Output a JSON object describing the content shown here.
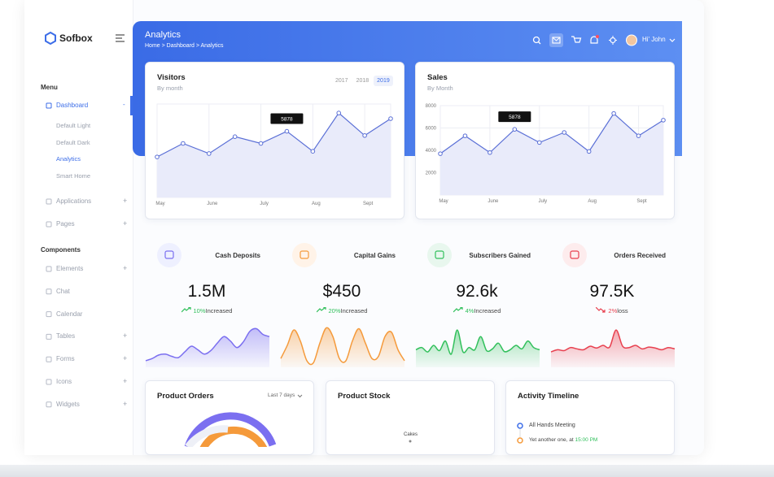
{
  "sidebar": {
    "brand": "Sofbox",
    "menu_title": "Menu",
    "dashboard": {
      "label": "Dashboard",
      "toggle": "-",
      "children": [
        "Default Light",
        "Default Dark",
        "Analytics",
        "Smart Home"
      ]
    },
    "menu_items": [
      {
        "label": "Applications",
        "toggle": "+"
      },
      {
        "label": "Pages",
        "toggle": "+"
      }
    ],
    "components_title": "Components",
    "component_items": [
      {
        "label": "Elements",
        "toggle": "+"
      },
      {
        "label": "Chat"
      },
      {
        "label": "Calendar"
      },
      {
        "label": "Tables",
        "toggle": "+"
      },
      {
        "label": "Forms",
        "toggle": "+"
      },
      {
        "label": "Icons",
        "toggle": "+"
      },
      {
        "label": "Widgets",
        "toggle": "+"
      }
    ]
  },
  "header": {
    "title": "Analytics",
    "breadcrumb": "Home > Dashboard > Analytics",
    "user": "Hi' John"
  },
  "visitors": {
    "type": "line",
    "title": "Visitors",
    "subtitle": "By month",
    "years": [
      "2017",
      "2018",
      "2019"
    ],
    "categories": [
      "May",
      null,
      "June",
      null,
      "July",
      null,
      "Aug",
      null,
      "Sept",
      null
    ],
    "values": [
      3600,
      4800,
      3900,
      5400,
      4800,
      5878,
      4100,
      7500,
      5500,
      7000
    ],
    "value_labels": [
      null,
      null,
      null,
      null,
      null,
      "5878",
      null,
      null,
      null,
      null
    ],
    "ylim": [
      0,
      8300
    ],
    "color": "#5a6fd6",
    "grid": true
  },
  "sales": {
    "type": "line",
    "title": "Sales",
    "subtitle": "By Month",
    "categories": [
      "May",
      null,
      "June",
      null,
      "July",
      null,
      "Aug",
      null,
      "Sept",
      null
    ],
    "values": [
      3700,
      5300,
      3800,
      5878,
      4700,
      5600,
      3900,
      7300,
      5300,
      6700
    ],
    "value_labels": [
      null,
      null,
      null,
      "5878",
      null,
      null,
      null,
      null,
      null,
      null
    ],
    "ylim": [
      0,
      8000
    ],
    "yticks": [
      2000,
      4000,
      6000,
      8000
    ],
    "color": "#5a6fd6",
    "grid": true
  },
  "stats": [
    {
      "title": "Cash Deposits",
      "value": "1.5M",
      "change": "10%",
      "change_text": "Increased",
      "trend": "up",
      "color": "#7b6ff0",
      "ylim": [
        0,
        100
      ],
      "spark": [
        15,
        20,
        28,
        30,
        25,
        22,
        35,
        48,
        40,
        30,
        38,
        55,
        70,
        60,
        45,
        58,
        82,
        88,
        75,
        70
      ]
    },
    {
      "title": "Capital Gains",
      "value": "$450",
      "change": "20%",
      "change_text": "Increased",
      "trend": "up",
      "color": "#f59a3b",
      "ylim": [
        0,
        100
      ],
      "spark": [
        20,
        50,
        85,
        60,
        15,
        10,
        55,
        90,
        70,
        20,
        15,
        60,
        88,
        55,
        20,
        25,
        70,
        80,
        40,
        15
      ]
    },
    {
      "title": "Subscribers Gained",
      "value": "92.6k",
      "change": "4%",
      "change_text": "Increased",
      "trend": "up",
      "color": "#32c05c",
      "ylim": [
        0,
        100
      ],
      "spark": [
        40,
        45,
        35,
        50,
        38,
        60,
        30,
        85,
        35,
        45,
        40,
        70,
        38,
        42,
        55,
        36,
        40,
        50,
        42,
        60,
        45,
        40
      ]
    },
    {
      "title": "Orders Received",
      "value": "97.5K",
      "change": "2%",
      "change_text": "loss",
      "trend": "down",
      "color": "#e8404f",
      "ylim": [
        0,
        100
      ],
      "spark": [
        35,
        40,
        38,
        45,
        42,
        40,
        48,
        44,
        50,
        46,
        85,
        48,
        45,
        50,
        42,
        46,
        44,
        40,
        45,
        42
      ]
    }
  ],
  "bottom": {
    "product_orders": {
      "title": "Product Orders",
      "filter": "Last 7 days"
    },
    "product_stock": {
      "title": "Product Stock",
      "label": "Cakes"
    },
    "timeline": {
      "title": "Activity Timeline",
      "items": [
        {
          "text": "All Hands Meeting"
        },
        {
          "text": "Yet another one, at ",
          "highlight": "15:00 PM"
        }
      ]
    }
  }
}
